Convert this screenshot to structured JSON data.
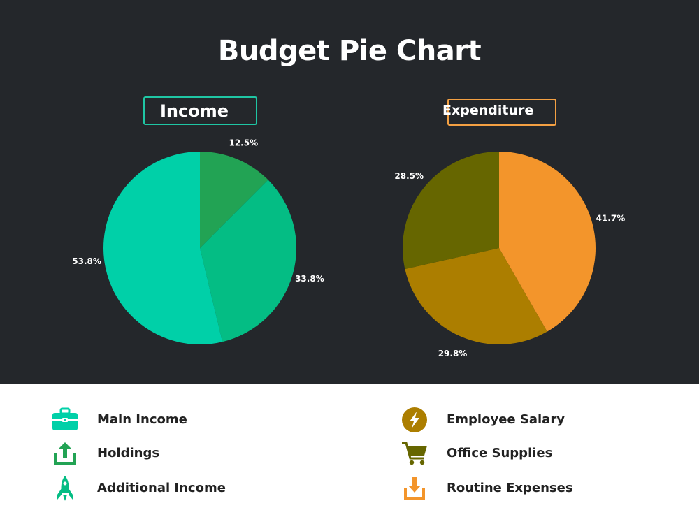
{
  "title": "Budget Pie Chart",
  "colors": {
    "background": "#24272b",
    "income_accent": "#1fc6a4",
    "expenditure_accent": "#f3a043"
  },
  "chart_data": [
    {
      "type": "pie",
      "title": "Income",
      "slices": [
        {
          "label": "Holdings",
          "value": 12.5,
          "display": "12.5%",
          "color": "#22a354"
        },
        {
          "label": "Additional Income",
          "value": 33.8,
          "display": "33.8%",
          "color": "#04bd84"
        },
        {
          "label": "Main Income",
          "value": 53.8,
          "display": "53.8%",
          "color": "#00d0a8"
        }
      ]
    },
    {
      "type": "pie",
      "title": "Expenditure",
      "slices": [
        {
          "label": "Routine Expenses",
          "value": 41.7,
          "display": "41.7%",
          "color": "#f3952b"
        },
        {
          "label": "Employee Salary",
          "value": 29.8,
          "display": "29.8%",
          "color": "#ac7e00"
        },
        {
          "label": "Office Supplies",
          "value": 28.5,
          "display": "28.5%",
          "color": "#666600"
        }
      ]
    }
  ],
  "legend": {
    "left": [
      {
        "label": "Main Income",
        "icon": "briefcase-icon",
        "color": "#00d0a8"
      },
      {
        "label": "Holdings",
        "icon": "upload-icon",
        "color": "#22a354"
      },
      {
        "label": "Additional Income",
        "icon": "rocket-icon",
        "color": "#04bd84"
      }
    ],
    "right": [
      {
        "label": "Employee Salary",
        "icon": "lightning-icon",
        "color": "#ac7e00"
      },
      {
        "label": "Office Supplies",
        "icon": "cart-icon",
        "color": "#666600"
      },
      {
        "label": "Routine Expenses",
        "icon": "download-icon",
        "color": "#f3952b"
      }
    ]
  }
}
